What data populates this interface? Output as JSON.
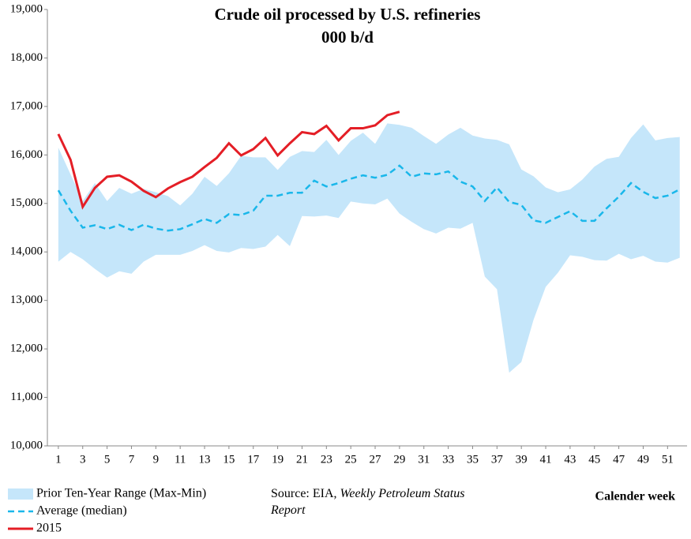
{
  "chart_data": {
    "type": "line",
    "title": "Crude oil processed by U.S. refineries",
    "subtitle": "000 b/d",
    "xlabel": "Calender week",
    "source": {
      "text": "Source: EIA, ",
      "italic": "Weekly Petroleum Status Report"
    },
    "x": [
      1,
      2,
      3,
      4,
      5,
      6,
      7,
      8,
      9,
      10,
      11,
      12,
      13,
      14,
      15,
      16,
      17,
      18,
      19,
      20,
      21,
      22,
      23,
      24,
      25,
      26,
      27,
      28,
      29,
      30,
      31,
      32,
      33,
      34,
      35,
      36,
      37,
      38,
      39,
      40,
      41,
      42,
      43,
      44,
      45,
      46,
      47,
      48,
      49,
      50,
      51,
      52
    ],
    "xlim": [
      0.1,
      52.6
    ],
    "xticks": [
      1,
      3,
      5,
      7,
      9,
      11,
      13,
      15,
      17,
      19,
      21,
      23,
      25,
      27,
      29,
      31,
      33,
      35,
      37,
      39,
      41,
      43,
      45,
      47,
      49,
      51
    ],
    "ylim": [
      10000,
      19000
    ],
    "yticks": [
      {
        "value": 10000,
        "label": "10,000"
      },
      {
        "value": 11000,
        "label": "11,000"
      },
      {
        "value": 12000,
        "label": "12,000"
      },
      {
        "value": 13000,
        "label": "13,000"
      },
      {
        "value": 14000,
        "label": "14,000"
      },
      {
        "value": 15000,
        "label": "15,000"
      },
      {
        "value": 16000,
        "label": "16,000"
      },
      {
        "value": 17000,
        "label": "17,000"
      },
      {
        "value": 18000,
        "label": "18,000"
      },
      {
        "value": 19000,
        "label": "19,000"
      }
    ],
    "legend": "bottom-left",
    "series": [
      {
        "name": "Prior Ten-Year Range (Max-Min)",
        "color": "#c5e6fa",
        "kind": "range",
        "max": [
          16150,
          15600,
          15050,
          15420,
          15050,
          15320,
          15200,
          15300,
          15230,
          15150,
          14960,
          15200,
          15550,
          15360,
          15620,
          15980,
          15950,
          15950,
          15690,
          15960,
          16080,
          16060,
          16310,
          16000,
          16290,
          16460,
          16230,
          16650,
          16620,
          16560,
          16390,
          16230,
          16420,
          16560,
          16400,
          16340,
          16310,
          16220,
          15700,
          15560,
          15330,
          15230,
          15290,
          15490,
          15760,
          15920,
          15960,
          16350,
          16630,
          16300,
          16350,
          16370
        ],
        "min": [
          13800,
          14000,
          13850,
          13650,
          13470,
          13600,
          13550,
          13800,
          13940,
          13940,
          13940,
          14020,
          14140,
          14020,
          13990,
          14080,
          14060,
          14110,
          14350,
          14120,
          14740,
          14730,
          14750,
          14700,
          15040,
          15000,
          14980,
          15100,
          14790,
          14620,
          14470,
          14380,
          14500,
          14480,
          14600,
          13490,
          13230,
          11510,
          11730,
          12600,
          13280,
          13570,
          13930,
          13900,
          13830,
          13820,
          13960,
          13850,
          13920,
          13800,
          13780,
          13880
        ]
      },
      {
        "name": "Average (median)",
        "color": "#1ab7ea",
        "dashed": true,
        "values": [
          15270,
          14850,
          14500,
          14550,
          14470,
          14560,
          14450,
          14560,
          14480,
          14440,
          14470,
          14570,
          14680,
          14600,
          14780,
          14760,
          14850,
          15160,
          15160,
          15220,
          15220,
          15470,
          15350,
          15420,
          15510,
          15580,
          15530,
          15590,
          15780,
          15550,
          15620,
          15600,
          15660,
          15450,
          15350,
          15050,
          15330,
          15030,
          14970,
          14650,
          14600,
          14720,
          14840,
          14640,
          14640,
          14900,
          15140,
          15420,
          15240,
          15110,
          15160,
          15290
        ]
      },
      {
        "name": "2015",
        "color": "#e41e26",
        "values": [
          16430,
          15900,
          14930,
          15320,
          15550,
          15580,
          15450,
          15260,
          15130,
          15310,
          15440,
          15550,
          15750,
          15940,
          16240,
          15990,
          16120,
          16350,
          15990,
          16240,
          16470,
          16430,
          16600,
          16300,
          16550,
          16550,
          16610,
          16820,
          16890,
          null,
          null,
          null,
          null,
          null,
          null,
          null,
          null,
          null,
          null,
          null,
          null,
          null,
          null,
          null,
          null,
          null,
          null,
          null,
          null,
          null,
          null,
          null
        ]
      }
    ]
  }
}
